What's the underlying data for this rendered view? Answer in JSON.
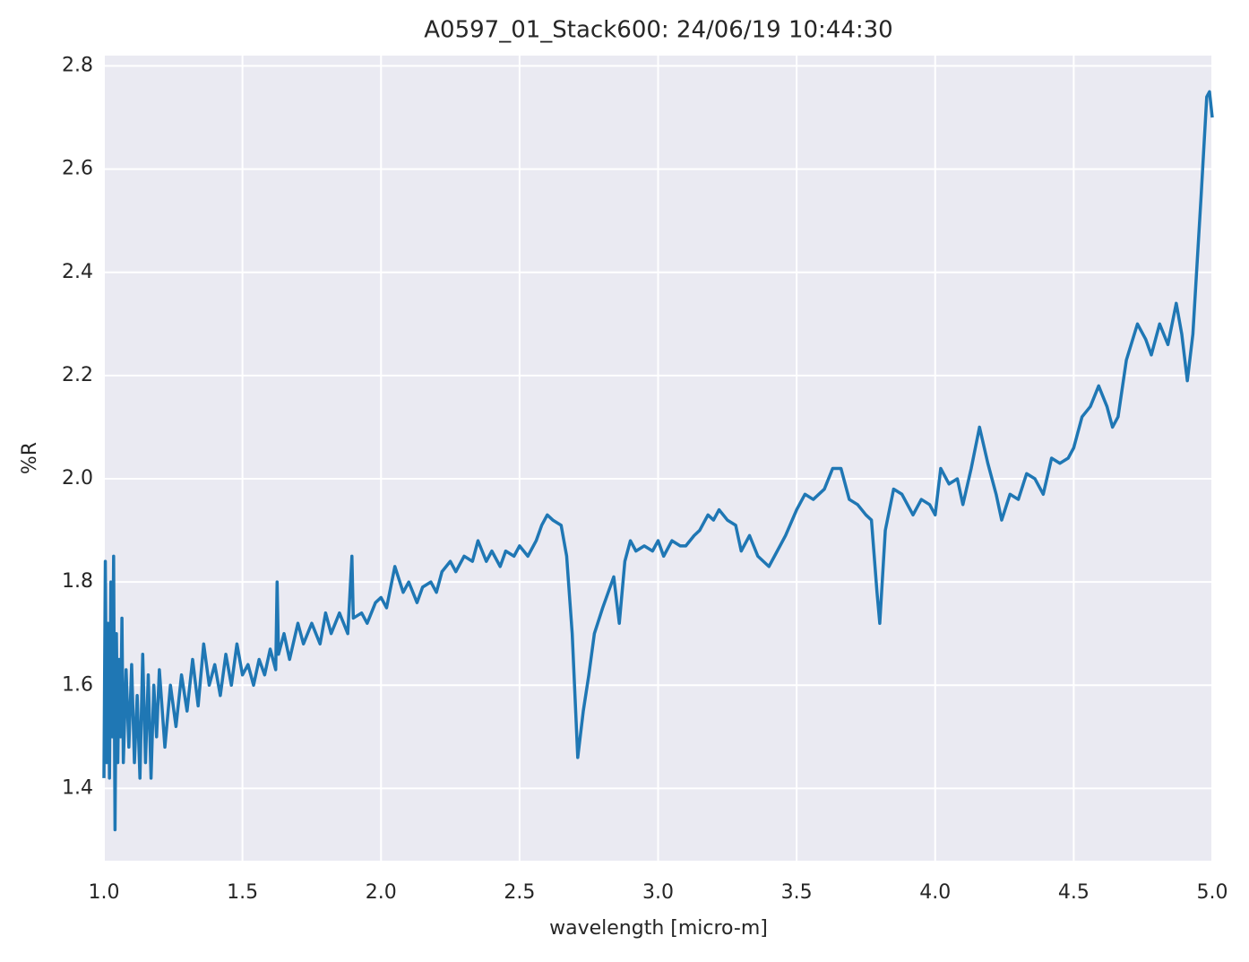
{
  "chart_data": {
    "type": "line",
    "title": "A0597_01_Stack600:  24/06/19 10:44:30",
    "xlabel": "wavelength [micro-m]",
    "ylabel": "%R",
    "xlim": [
      1,
      5
    ],
    "ylim": [
      1.26,
      2.82
    ],
    "xticks": [
      {
        "value": 1,
        "label": "1.0"
      },
      1.5,
      {
        "value": 2,
        "label": "2.0"
      },
      2.5,
      {
        "value": 3,
        "label": "3.0"
      },
      3.5,
      {
        "value": 4,
        "label": "4.0"
      },
      4.5,
      {
        "value": 5,
        "label": "5.0"
      }
    ],
    "yticks": [
      1.4,
      1.6,
      1.8,
      {
        "value": 2,
        "label": "2.0"
      },
      2.2,
      2.4,
      2.6,
      2.8
    ],
    "grid": true,
    "x": [
      1.0,
      1.005,
      1.01,
      1.015,
      1.02,
      1.025,
      1.03,
      1.035,
      1.04,
      1.045,
      1.05,
      1.055,
      1.06,
      1.065,
      1.07,
      1.08,
      1.09,
      1.1,
      1.11,
      1.12,
      1.13,
      1.14,
      1.15,
      1.16,
      1.17,
      1.18,
      1.19,
      1.2,
      1.22,
      1.24,
      1.26,
      1.28,
      1.3,
      1.32,
      1.34,
      1.36,
      1.38,
      1.4,
      1.42,
      1.44,
      1.46,
      1.48,
      1.5,
      1.52,
      1.54,
      1.56,
      1.58,
      1.6,
      1.62,
      1.625,
      1.63,
      1.65,
      1.67,
      1.7,
      1.72,
      1.75,
      1.78,
      1.8,
      1.82,
      1.85,
      1.88,
      1.895,
      1.9,
      1.93,
      1.95,
      1.98,
      2.0,
      2.02,
      2.05,
      2.08,
      2.1,
      2.13,
      2.15,
      2.18,
      2.2,
      2.22,
      2.25,
      2.27,
      2.3,
      2.33,
      2.35,
      2.38,
      2.4,
      2.43,
      2.45,
      2.48,
      2.5,
      2.53,
      2.56,
      2.58,
      2.6,
      2.62,
      2.65,
      2.67,
      2.69,
      2.71,
      2.73,
      2.75,
      2.77,
      2.8,
      2.82,
      2.84,
      2.86,
      2.88,
      2.9,
      2.92,
      2.95,
      2.98,
      3.0,
      3.02,
      3.05,
      3.08,
      3.1,
      3.13,
      3.15,
      3.18,
      3.2,
      3.22,
      3.25,
      3.28,
      3.3,
      3.33,
      3.36,
      3.4,
      3.43,
      3.46,
      3.5,
      3.53,
      3.56,
      3.6,
      3.63,
      3.66,
      3.69,
      3.72,
      3.75,
      3.77,
      3.79,
      3.8,
      3.82,
      3.85,
      3.88,
      3.92,
      3.95,
      3.98,
      4.0,
      4.02,
      4.05,
      4.08,
      4.1,
      4.13,
      4.16,
      4.19,
      4.22,
      4.24,
      4.27,
      4.3,
      4.33,
      4.36,
      4.39,
      4.42,
      4.45,
      4.48,
      4.5,
      4.53,
      4.56,
      4.59,
      4.62,
      4.64,
      4.66,
      4.69,
      4.73,
      4.76,
      4.78,
      4.81,
      4.84,
      4.87,
      4.89,
      4.91,
      4.93,
      4.96,
      4.98,
      4.99,
      5.0
    ],
    "series": [
      {
        "color": "#1f77b4",
        "values": [
          1.42,
          1.84,
          1.45,
          1.72,
          1.42,
          1.8,
          1.5,
          1.85,
          1.32,
          1.7,
          1.45,
          1.65,
          1.5,
          1.73,
          1.45,
          1.63,
          1.48,
          1.64,
          1.45,
          1.58,
          1.42,
          1.66,
          1.45,
          1.62,
          1.42,
          1.6,
          1.5,
          1.63,
          1.48,
          1.6,
          1.52,
          1.62,
          1.55,
          1.65,
          1.56,
          1.68,
          1.6,
          1.64,
          1.58,
          1.66,
          1.6,
          1.68,
          1.62,
          1.64,
          1.6,
          1.65,
          1.62,
          1.67,
          1.63,
          1.8,
          1.66,
          1.7,
          1.65,
          1.72,
          1.68,
          1.72,
          1.68,
          1.74,
          1.7,
          1.74,
          1.7,
          1.85,
          1.73,
          1.74,
          1.72,
          1.76,
          1.77,
          1.75,
          1.83,
          1.78,
          1.8,
          1.76,
          1.79,
          1.8,
          1.78,
          1.82,
          1.84,
          1.82,
          1.85,
          1.84,
          1.88,
          1.84,
          1.86,
          1.83,
          1.86,
          1.85,
          1.87,
          1.85,
          1.88,
          1.91,
          1.93,
          1.92,
          1.91,
          1.85,
          1.7,
          1.46,
          1.55,
          1.62,
          1.7,
          1.75,
          1.78,
          1.81,
          1.72,
          1.84,
          1.88,
          1.86,
          1.87,
          1.86,
          1.88,
          1.85,
          1.88,
          1.87,
          1.87,
          1.89,
          1.9,
          1.93,
          1.92,
          1.94,
          1.92,
          1.91,
          1.86,
          1.89,
          1.85,
          1.83,
          1.86,
          1.89,
          1.94,
          1.97,
          1.96,
          1.98,
          2.02,
          2.02,
          1.96,
          1.95,
          1.93,
          1.92,
          1.78,
          1.72,
          1.9,
          1.98,
          1.97,
          1.93,
          1.96,
          1.95,
          1.93,
          2.02,
          1.99,
          2.0,
          1.95,
          2.02,
          2.1,
          2.03,
          1.97,
          1.92,
          1.97,
          1.96,
          2.01,
          2.0,
          1.97,
          2.04,
          2.03,
          2.04,
          2.06,
          2.12,
          2.14,
          2.18,
          2.14,
          2.1,
          2.12,
          2.23,
          2.3,
          2.27,
          2.24,
          2.3,
          2.26,
          2.34,
          2.28,
          2.19,
          2.28,
          2.55,
          2.74,
          2.75,
          2.7
        ]
      }
    ]
  }
}
